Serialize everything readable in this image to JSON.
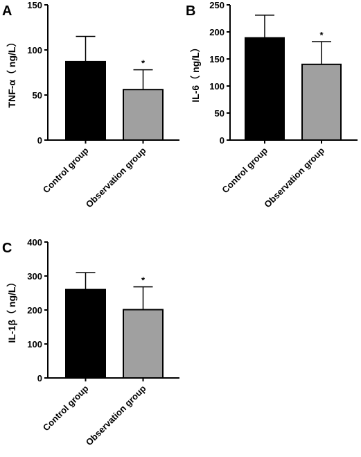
{
  "colors": {
    "control": "#000000",
    "observation": "#a0a0a0",
    "axis": "#000000"
  },
  "chart_data": [
    {
      "panel": "A",
      "type": "bar",
      "categories": [
        "Control group",
        "Observation group"
      ],
      "values": [
        87,
        56
      ],
      "errors": [
        28,
        22
      ],
      "significance": [
        "",
        "*"
      ],
      "ylabel": "TNF-α（ ng/L）",
      "ylim": [
        0,
        150
      ],
      "yticks": [
        0,
        50,
        100,
        150
      ],
      "grid": false
    },
    {
      "panel": "B",
      "type": "bar",
      "categories": [
        "Control group",
        "Observation group"
      ],
      "values": [
        189,
        140
      ],
      "errors": [
        42,
        42
      ],
      "significance": [
        "",
        "*"
      ],
      "ylabel": "IL-6（ ng/L）",
      "ylim": [
        0,
        250
      ],
      "yticks": [
        0,
        50,
        100,
        150,
        200,
        250
      ],
      "grid": false
    },
    {
      "panel": "C",
      "type": "bar",
      "categories": [
        "Control group",
        "Observation group"
      ],
      "values": [
        260,
        201
      ],
      "errors": [
        50,
        67
      ],
      "significance": [
        "",
        "*"
      ],
      "ylabel": "IL-1β（ ng/L）",
      "ylim": [
        0,
        400
      ],
      "yticks": [
        0,
        100,
        200,
        300,
        400
      ],
      "grid": false
    }
  ]
}
